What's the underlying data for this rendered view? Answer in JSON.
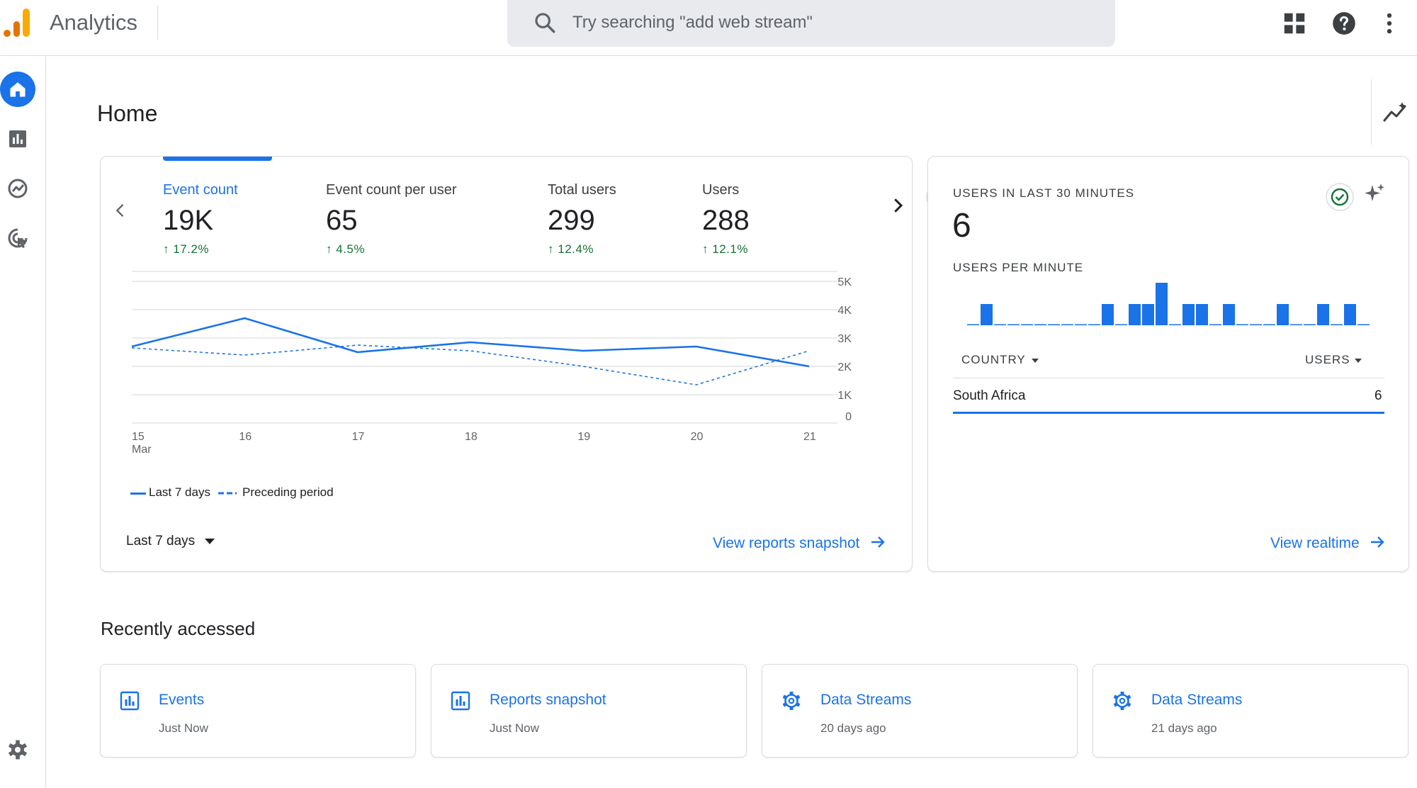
{
  "header": {
    "app_title": "Analytics",
    "search_placeholder": "Try searching \"add web stream\""
  },
  "colors": {
    "accent": "#1a73e8",
    "positive": "#137333",
    "logo_orange": "#f9ab00",
    "logo_dark_orange": "#e37400"
  },
  "page": {
    "title": "Home"
  },
  "summary_card": {
    "metrics": [
      {
        "label": "Event count",
        "value": "19K",
        "change": "17.2%",
        "active": true
      },
      {
        "label": "Event count per user",
        "value": "65",
        "change": "4.5%",
        "active": false
      },
      {
        "label": "Total users",
        "value": "299",
        "change": "12.4%",
        "active": false
      },
      {
        "label": "Users",
        "value": "288",
        "change": "12.1%",
        "active": false
      }
    ],
    "date_range": "Last 7 days",
    "link": "View reports snapshot"
  },
  "chart_data": {
    "type": "line",
    "x": [
      "15",
      "16",
      "17",
      "18",
      "19",
      "20",
      "21"
    ],
    "x_sublabel": "Mar",
    "ylim": [
      0,
      5000
    ],
    "y_ticks": [
      "5K",
      "4K",
      "3K",
      "2K",
      "1K",
      "0"
    ],
    "y_tick_values": [
      5000,
      4000,
      3000,
      2000,
      1000,
      0
    ],
    "series": [
      {
        "name": "Last 7 days",
        "style": "solid",
        "values": [
          2700,
          3700,
          2500,
          2850,
          2550,
          2700,
          2000
        ]
      },
      {
        "name": "Preceding period",
        "style": "dashed",
        "values": [
          2650,
          2400,
          2750,
          2550,
          2000,
          1350,
          2550
        ]
      }
    ],
    "grid": true,
    "legend_position": "bottom-left"
  },
  "realtime_card": {
    "title": "USERS IN LAST 30 MINUTES",
    "value": "6",
    "subtitle": "USERS PER MINUTE",
    "per_minute": [
      0,
      1,
      0,
      0,
      0,
      0,
      0,
      0,
      0,
      0,
      1,
      0,
      1,
      1,
      2,
      0,
      1,
      1,
      0,
      1,
      0,
      0,
      0,
      1,
      0,
      0,
      1,
      0,
      1,
      0
    ],
    "table": {
      "col1": "COUNTRY",
      "col2": "USERS",
      "rows": [
        {
          "country": "South Africa",
          "users": "6"
        }
      ]
    },
    "link": "View realtime"
  },
  "recently_accessed": {
    "title": "Recently accessed",
    "items": [
      {
        "icon": "bar-chart-icon",
        "title": "Events",
        "time": "Just Now"
      },
      {
        "icon": "bar-chart-icon",
        "title": "Reports snapshot",
        "time": "Just Now"
      },
      {
        "icon": "gear-icon",
        "title": "Data Streams",
        "time": "20 days ago"
      },
      {
        "icon": "gear-icon",
        "title": "Data Streams",
        "time": "21 days ago"
      }
    ]
  }
}
